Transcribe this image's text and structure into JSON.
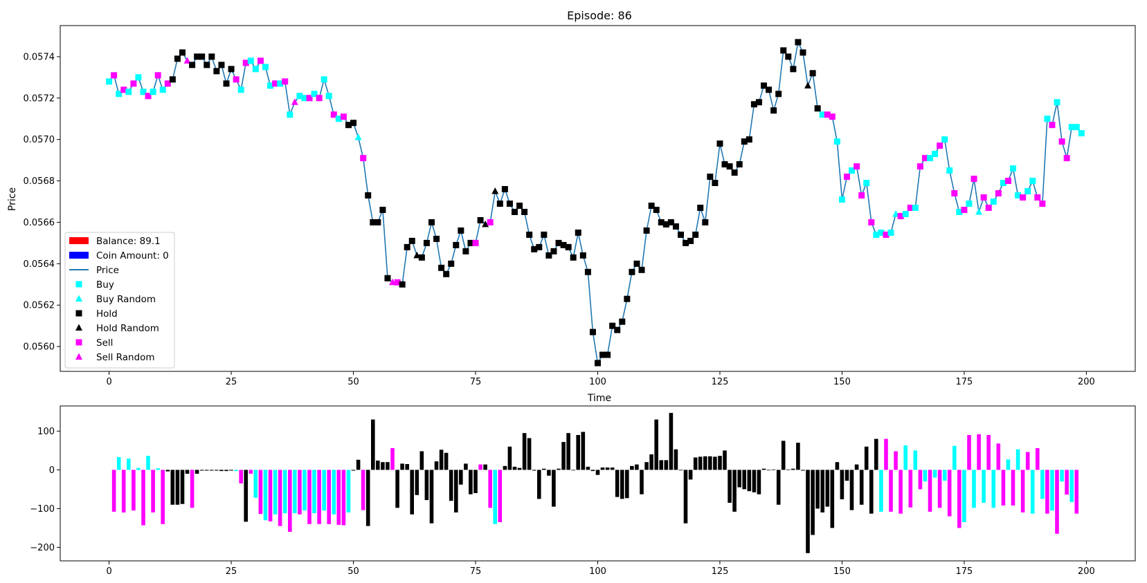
{
  "chart_data": [
    {
      "type": "line",
      "title": "Episode: 86",
      "xlabel": "Time",
      "ylabel": "Price",
      "xlim": [
        -10,
        210
      ],
      "ylim": [
        0.05588,
        0.05755
      ],
      "xticks": [
        0,
        25,
        50,
        75,
        100,
        125,
        150,
        175,
        200
      ],
      "xtick_labels": [
        "0",
        "25",
        "50",
        "75",
        "100",
        "125",
        "150",
        "175",
        "200"
      ],
      "yticks": [
        0.056,
        0.0562,
        0.0564,
        0.0566,
        0.0568,
        0.057,
        0.0572,
        0.0574
      ],
      "ytick_labels": [
        "0.0560",
        "0.0562",
        "0.0564",
        "0.0566",
        "0.0568",
        "0.0570",
        "0.0572",
        "0.0574"
      ],
      "grid": false,
      "legend_position": "lower-left",
      "legend": [
        {
          "label": "Balance: 89.1",
          "kind": "patch",
          "color": "#ff0000"
        },
        {
          "label": "Coin Amount: 0",
          "kind": "patch",
          "color": "#0000ff"
        },
        {
          "label": "Price",
          "kind": "line",
          "color": "#1f77b4"
        },
        {
          "label": "Buy",
          "kind": "square",
          "color": "#00ffff"
        },
        {
          "label": "Buy Random",
          "kind": "triangle",
          "color": "#00ffff"
        },
        {
          "label": "Hold",
          "kind": "square",
          "color": "#000000"
        },
        {
          "label": "Hold Random",
          "kind": "triangle",
          "color": "#000000"
        },
        {
          "label": "Sell",
          "kind": "square",
          "color": "#ff00ff"
        },
        {
          "label": "Sell Random",
          "kind": "triangle",
          "color": "#ff00ff"
        }
      ],
      "action_colors": {
        "B": "#00ffff",
        "H": "#000000",
        "S": "#ff00ff"
      },
      "line_color": "#1f77b4",
      "action_codes": "Random-chosen actions use the same color as a triangle marker",
      "series": [
        {
          "name": "Price",
          "x_start": 0,
          "values": [
            0.05728,
            0.05731,
            0.05722,
            0.05724,
            0.05723,
            0.05727,
            0.0573,
            0.05723,
            0.05721,
            0.05723,
            0.05731,
            0.05724,
            0.05727,
            0.05729,
            0.05739,
            0.05742,
            0.05738,
            0.05736,
            0.0574,
            0.0574,
            0.05736,
            0.0574,
            0.05733,
            0.05736,
            0.05727,
            0.05734,
            0.05729,
            0.05724,
            0.05737,
            0.05738,
            0.05734,
            0.05738,
            0.05735,
            0.05726,
            0.05727,
            0.05727,
            0.05728,
            0.05712,
            0.05718,
            0.05721,
            0.0572,
            0.0572,
            0.05722,
            0.0572,
            0.05729,
            0.05721,
            0.05712,
            0.0571,
            0.05711,
            0.05707,
            0.05708,
            0.05701,
            0.05691,
            0.05673,
            0.0566,
            0.0566,
            0.05666,
            0.05633,
            0.05631,
            0.05631,
            0.0563,
            0.05648,
            0.05651,
            0.05644,
            0.05643,
            0.0565,
            0.0566,
            0.05652,
            0.05638,
            0.05635,
            0.0564,
            0.05649,
            0.05656,
            0.05646,
            0.0565,
            0.0565,
            0.05661,
            0.05659,
            0.0566,
            0.05675,
            0.05669,
            0.05676,
            0.05669,
            0.05665,
            0.05668,
            0.05665,
            0.05654,
            0.05647,
            0.05648,
            0.05654,
            0.05644,
            0.05646,
            0.0565,
            0.05649,
            0.05648,
            0.05643,
            0.05655,
            0.05644,
            0.05636,
            0.05607,
            0.05592,
            0.05596,
            0.05596,
            0.0561,
            0.05608,
            0.05612,
            0.05623,
            0.05636,
            0.0564,
            0.05637,
            0.05656,
            0.05668,
            0.05666,
            0.0566,
            0.05659,
            0.0566,
            0.05658,
            0.05654,
            0.0565,
            0.05651,
            0.05654,
            0.05667,
            0.0566,
            0.05682,
            0.05679,
            0.05698,
            0.05688,
            0.05687,
            0.05684,
            0.05688,
            0.05699,
            0.057,
            0.05717,
            0.05718,
            0.05726,
            0.05724,
            0.05714,
            0.05722,
            0.05743,
            0.0574,
            0.05734,
            0.05747,
            0.05742,
            0.05726,
            0.05732,
            0.05715,
            0.05712,
            0.05712,
            0.05711,
            0.05699,
            0.05671,
            0.05682,
            0.05685,
            0.05687,
            0.05673,
            0.05679,
            0.0566,
            0.05654,
            0.05655,
            0.05654,
            0.05655,
            0.05664,
            0.05663,
            0.05664,
            0.05667,
            0.05667,
            0.05687,
            0.05691,
            0.05691,
            0.05693,
            0.05697,
            0.057,
            0.05685,
            0.05674,
            0.05665,
            0.05666,
            0.05669,
            0.05681,
            0.05665,
            0.05672,
            0.05667,
            0.0567,
            0.05674,
            0.05679,
            0.0568,
            0.05686,
            0.05673,
            0.05672,
            0.05675,
            0.0568,
            0.05672,
            0.05669,
            0.0571,
            0.05707,
            0.05718,
            0.05699,
            0.05691,
            0.05706,
            0.05706,
            0.05703
          ]
        }
      ],
      "actions": "BSBSBSBBSBSBSHHHSHHHHHHHHHSBSBBSBBSBSBSBBSBSBBSBSHHBSHHHHHSSHHHHHHHHHHHHHHHSHHSHHHHHHHHHHHHHHHHHHHHHHHHHHHHHHHHHHHHHHHHHHHHHHHHHHHHHHHHHHHHHHHHHHHBSSBBSBSSBSBBSBBSBSBSSBBSBBSBSBSBSSBSBSBBSBBSSBSBSSBBBSSBBSS",
      "random_actions": [
        16,
        38,
        51,
        58,
        63,
        77,
        79,
        143,
        161,
        178
      ]
    },
    {
      "type": "bar",
      "title": "",
      "xlim": [
        -10,
        210
      ],
      "ylim": [
        -235,
        165
      ],
      "xticks": [
        0,
        25,
        50,
        75,
        100,
        125,
        150,
        175,
        200
      ],
      "xtick_labels": [
        "0",
        "25",
        "50",
        "75",
        "100",
        "125",
        "150",
        "175",
        "200"
      ],
      "yticks": [
        -200,
        -100,
        0,
        100
      ],
      "ytick_labels": [
        "−200",
        "−100",
        "0",
        "100"
      ],
      "series": [
        {
          "name": "",
          "x_start": 1,
          "values": [
            -108,
            33,
            -110,
            29,
            -105,
            5,
            -143,
            36,
            -110,
            4,
            -140,
            -4,
            -90,
            -90,
            -88,
            -10,
            -98,
            -10,
            -2,
            -2,
            -2,
            -2,
            -3,
            -3,
            -2,
            -3,
            -35,
            -134,
            -10,
            -72,
            -114,
            -130,
            -133,
            -115,
            -145,
            -112,
            -160,
            -112,
            -115,
            -105,
            -140,
            -112,
            -140,
            -105,
            -140,
            -115,
            -142,
            -143,
            -110,
            -2,
            26,
            -104,
            -145,
            130,
            24,
            20,
            20,
            56,
            -98,
            16,
            15,
            -115,
            -65,
            48,
            -78,
            -138,
            22,
            52,
            44,
            -80,
            -110,
            -38,
            16,
            -63,
            -60,
            14,
            14,
            -98,
            -140,
            -135,
            10,
            60,
            8,
            5,
            95,
            82,
            -2,
            -75,
            3,
            -15,
            -95,
            3,
            72,
            95,
            -1,
            90,
            98,
            8,
            -3,
            -13,
            6,
            6,
            6,
            -70,
            -75,
            -73,
            10,
            14,
            -63,
            20,
            40,
            130,
            25,
            25,
            147,
            53,
            -1,
            -138,
            -25,
            32,
            34,
            35,
            35,
            34,
            36,
            50,
            -85,
            -108,
            -45,
            -50,
            -55,
            -58,
            -63,
            3,
            -1,
            1,
            -90,
            75,
            1,
            3,
            70,
            -2,
            -215,
            -168,
            -100,
            -110,
            -95,
            -150,
            20,
            -76,
            -28,
            -104,
            14,
            -90,
            60,
            -113,
            80,
            -108,
            80,
            -108,
            48,
            -113,
            63,
            -97,
            50,
            -50,
            -30,
            -108,
            -20,
            -98,
            -28,
            -120,
            62,
            -150,
            -135,
            90,
            -98,
            92,
            -85,
            90,
            -98,
            68,
            -92,
            27,
            -92,
            53,
            -110,
            46,
            -113,
            56,
            -75,
            -113,
            -105,
            -165,
            -30,
            -64,
            -83,
            -113
          ]
        }
      ],
      "bar_actions": "SBSBSBSBSBSHHHHHSHHHHHHHHBSHSBSBSBSBSBSBSBSBSBSSBHHSHHHHHSHHHHHHHHHHHHHHHHHSHSBSHHHHHHHHHHHHHHHHHHHHHHHHHHHHHHHHHHHHHHHHHHHHHHHHHHHHHHHHHHHHHHHHHHHHHHHHHHHHHBSSSSBSBSBSBSBSBSBSBSBSBSSBSBSSBSBSBSBSBSBSBSSBSSBSSBS"
    }
  ]
}
